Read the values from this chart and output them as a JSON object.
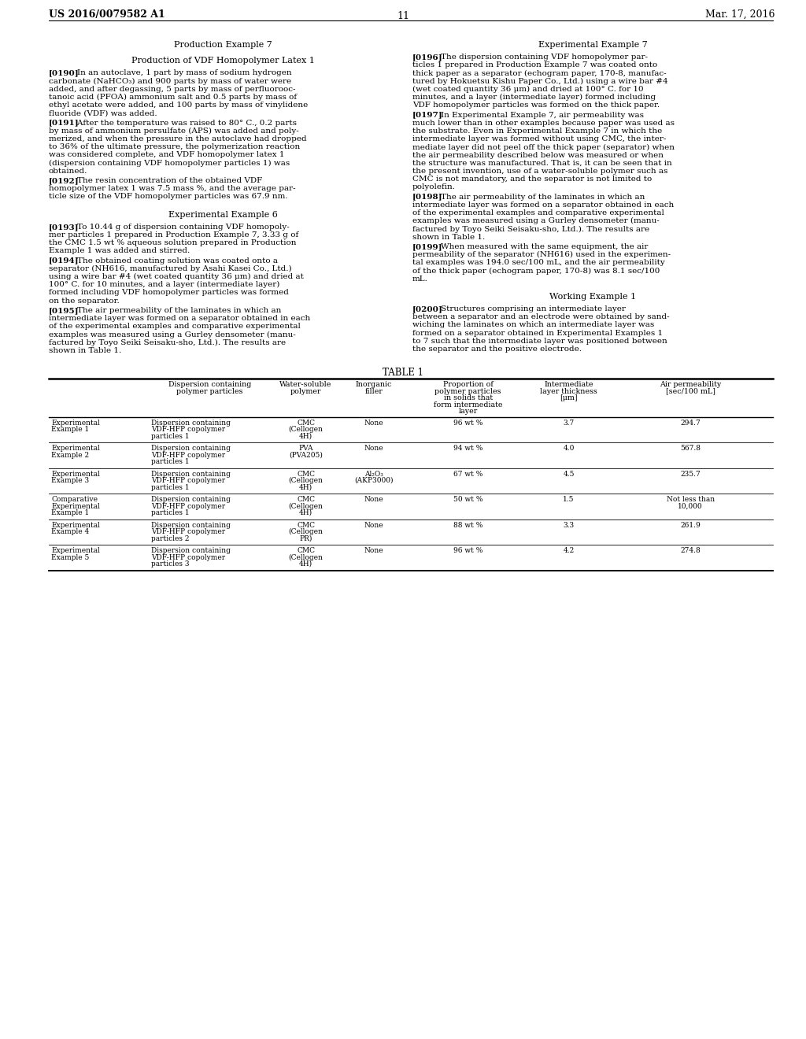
{
  "background_color": "#ffffff",
  "header_left": "US 2016/0079582 A1",
  "header_right": "Mar. 17, 2016",
  "page_number": "11",
  "left_paragraphs": [
    {
      "type": "center",
      "text": "Production Example 7",
      "bold": false,
      "space_before": 18,
      "space_after": 6
    },
    {
      "type": "center",
      "text": "Production of VDF Homopolymer Latex 1",
      "bold": false,
      "space_before": 4,
      "space_after": 6
    },
    {
      "type": "para",
      "tag": "[0190]",
      "space_before": 0,
      "space_after": 2,
      "lines": [
        "[0190]    In an autoclave, 1 part by mass of sodium hydrogen",
        "carbonate (NaHCO₃) and 900 parts by mass of water were",
        "added, and after degassing, 5 parts by mass of perfluorooc-",
        "tanoic acid (PFOA) ammonium salt and 0.5 parts by mass of",
        "ethyl acetate were added, and 100 parts by mass of vinylidene",
        "fluoride (VDF) was added."
      ]
    },
    {
      "type": "para",
      "tag": "[0191]",
      "space_before": 0,
      "space_after": 2,
      "lines": [
        "[0191]    After the temperature was raised to 80° C., 0.2 parts",
        "by mass of ammonium persulfate (APS) was added and poly-",
        "merized, and when the pressure in the autoclave had dropped",
        "to 36% of the ultimate pressure, the polymerization reaction",
        "was considered complete, and VDF homopolymer latex 1",
        "(dispersion containing VDF homopolymer particles 1) was",
        "obtained."
      ]
    },
    {
      "type": "para",
      "tag": "[0192]",
      "space_before": 0,
      "space_after": 2,
      "lines": [
        "[0192]    The resin concentration of the obtained VDF",
        "homopolymer latex 1 was 7.5 mass %, and the average par-",
        "ticle size of the VDF homopolymer particles was 67.9 nm."
      ]
    },
    {
      "type": "center",
      "text": "Experimental Example 6",
      "bold": false,
      "space_before": 10,
      "space_after": 6
    },
    {
      "type": "para",
      "tag": "[0193]",
      "space_before": 0,
      "space_after": 2,
      "lines": [
        "[0193]    To 10.44 g of dispersion containing VDF homopoly-",
        "mer particles 1 prepared in Production Example 7, 3.33 g of",
        "the CMC 1.5 wt % aqueous solution prepared in Production",
        "Example 1 was added and stirred."
      ]
    },
    {
      "type": "para",
      "tag": "[0194]",
      "space_before": 0,
      "space_after": 2,
      "lines": [
        "[0194]    The obtained coating solution was coated onto a",
        "separator (NH616, manufactured by Asahi Kasei Co., Ltd.)",
        "using a wire bar #4 (wet coated quantity 36 μm) and dried at",
        "100° C. for 10 minutes, and a layer (intermediate layer)",
        "formed including VDF homopolymer particles was formed",
        "on the separator."
      ]
    },
    {
      "type": "para",
      "tag": "[0195]",
      "space_before": 0,
      "space_after": 2,
      "lines": [
        "[0195]    The air permeability of the laminates in which an",
        "intermediate layer was formed on a separator obtained in each",
        "of the experimental examples and comparative experimental",
        "examples was measured using a Gurley densometer (manu-",
        "factured by Toyo Seiki Seisaku-sho, Ltd.). The results are",
        "shown in Table 1."
      ]
    }
  ],
  "right_paragraphs": [
    {
      "type": "center",
      "text": "Experimental Example 7",
      "bold": false,
      "space_before": 18,
      "space_after": 6
    },
    {
      "type": "para",
      "tag": "[0196]",
      "space_before": 0,
      "space_after": 2,
      "lines": [
        "[0196]    The dispersion containing VDF homopolymer par-",
        "ticles 1 prepared in Production Example 7 was coated onto",
        "thick paper as a separator (echogram paper, 170-8, manufac-",
        "tured by Hokuetsu Kishu Paper Co., Ltd.) using a wire bar #4",
        "(wet coated quantity 36 μm) and dried at 100° C. for 10",
        "minutes, and a layer (intermediate layer) formed including",
        "VDF homopolymer particles was formed on the thick paper."
      ]
    },
    {
      "type": "para",
      "tag": "[0197]",
      "space_before": 0,
      "space_after": 2,
      "lines": [
        "[0197]    In Experimental Example 7, air permeability was",
        "much lower than in other examples because paper was used as",
        "the substrate. Even in Experimental Example 7 in which the",
        "intermediate layer was formed without using CMC, the inter-",
        "mediate layer did not peel off the thick paper (separator) when",
        "the air permeability described below was measured or when",
        "the structure was manufactured. That is, it can be seen that in",
        "the present invention, use of a water-soluble polymer such as",
        "CMC is not mandatory, and the separator is not limited to",
        "polyolefin."
      ]
    },
    {
      "type": "para",
      "tag": "[0198]",
      "space_before": 0,
      "space_after": 2,
      "lines": [
        "[0198]    The air permeability of the laminates in which an",
        "intermediate layer was formed on a separator obtained in each",
        "of the experimental examples and comparative experimental",
        "examples was measured using a Gurley densometer (manu-",
        "factured by Toyo Seiki Seisaku-sho, Ltd.). The results are",
        "shown in Table 1."
      ]
    },
    {
      "type": "para",
      "tag": "[0199]",
      "space_before": 0,
      "space_after": 2,
      "lines": [
        "[0199]    When measured with the same equipment, the air",
        "permeability of the separator (NH616) used in the experimen-",
        "tal examples was 194.0 sec/100 mL, and the air permeability",
        "of the thick paper (echogram paper, 170-8) was 8.1 sec/100",
        "mL."
      ]
    },
    {
      "type": "center",
      "text": "Working Example 1",
      "bold": false,
      "space_before": 10,
      "space_after": 6
    },
    {
      "type": "para",
      "tag": "[0200]",
      "space_before": 0,
      "space_after": 2,
      "lines": [
        "[0200]    Structures comprising an intermediate layer",
        "between a separator and an electrode were obtained by sand-",
        "wiching the laminates on which an intermediate layer was",
        "formed on a separator obtained in Experimental Examples 1",
        "to 7 such that the intermediate layer was positioned between",
        "the separator and the positive electrode."
      ]
    }
  ],
  "table_title": "TABLE 1",
  "table_col_headers": [
    "",
    "Dispersion containing\npolymer particles",
    "Water-soluble\npolymer",
    "Inorganic\nfiller",
    "Proportion of\npolymer particles\nin solids that\nform intermediate\nlayer",
    "Intermediate\nlayer thickness\n[μm]",
    "Air permeability\n[sec/100 mL]"
  ],
  "table_rows": [
    [
      "Experimental\nExample 1",
      "Dispersion containing\nVDF-HFP copolymer\nparticles 1",
      "CMC\n(Cellogen\n4H)",
      "None",
      "96 wt %",
      "3.7",
      "294.7"
    ],
    [
      "Experimental\nExample 2",
      "Dispersion containing\nVDF-HFP copolymer\nparticles 1",
      "PVA\n(PVA205)",
      "None",
      "94 wt %",
      "4.0",
      "567.8"
    ],
    [
      "Experimental\nExample 3",
      "Dispersion containing\nVDF-HFP copolymer\nparticles 1",
      "CMC\n(Cellogen\n4H)",
      "Al₂O₃\n(AKP3000)",
      "67 wt %",
      "4.5",
      "235.7"
    ],
    [
      "Comparative\nExperimental\nExample 1",
      "Dispersion containing\nVDF-HFP copolymer\nparticles 1",
      "CMC\n(Cellogen\n4H)",
      "None",
      "50 wt %",
      "1.5",
      "Not less than\n10,000"
    ],
    [
      "Experimental\nExample 4",
      "Dispersion containing\nVDF-HFP copolymer\nparticles 2",
      "CMC\n(Cellogen\nPR)",
      "None",
      "88 wt %",
      "3.3",
      "261.9"
    ],
    [
      "Experimental\nExample 5",
      "Dispersion containing\nVDF-HFP copolymer\nparticles 3",
      "CMC\n(Cellogen\n4H)",
      "None",
      "96 wt %",
      "4.2",
      "274.8"
    ]
  ],
  "tag_bold_positions": [
    "[0190]",
    "[0191]",
    "[0192]",
    "[0193]",
    "[0194]",
    "[0195]",
    "[0196]",
    "[0197]",
    "[0198]",
    "[0199]",
    "[0200]"
  ]
}
